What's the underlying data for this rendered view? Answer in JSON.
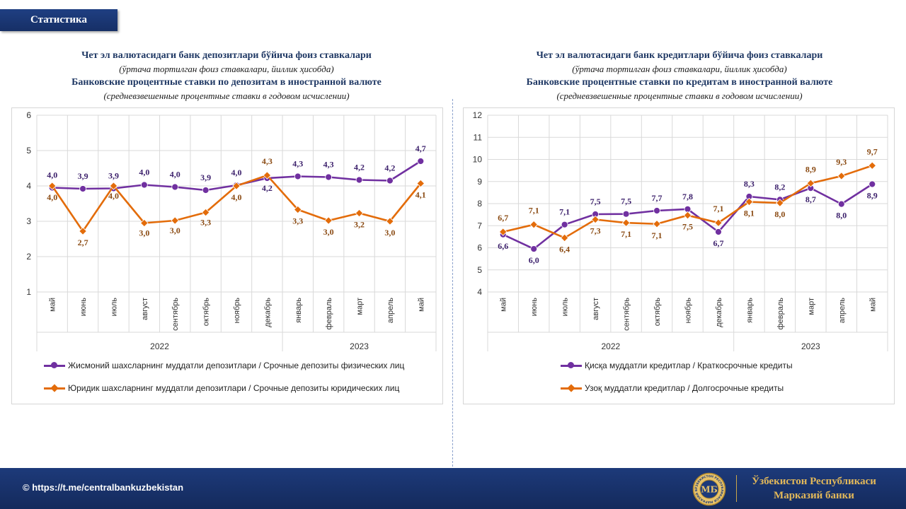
{
  "header": {
    "title": "Статистика"
  },
  "left": {
    "title_line1": "Чет эл валютасидаги банк депозитлари бўйича фоиз ставкалари",
    "title_line2": "(ўртача тортилган фоиз ставкалари, йиллик ҳисобда)",
    "title_line3": "Банковские процентные ставки по депозитам в иностранной валюте",
    "title_line4": "(средневзвешенные процентные ставки в годовом исчислении)"
  },
  "right": {
    "title_line1": "Чет эл валютасидаги банк кредитлари бўйича фоиз ставкалари",
    "title_line2": "(ўртача тортилган фоиз ставкалари, йиллик ҳисобда)",
    "title_line3": "Банковские процентные ставки по кредитам в иностранной валюте",
    "title_line4": "(средневзвешенные процентные ставки в годовом исчислении)"
  },
  "chart_data": [
    {
      "type": "line",
      "categories": [
        "май",
        "июнь",
        "июль",
        "август",
        "сентябрь",
        "октябрь",
        "ноябрь",
        "декабрь",
        "январь",
        "февраль",
        "март",
        "апрель",
        "май"
      ],
      "year_groups": [
        {
          "label": "2022",
          "count": 8
        },
        {
          "label": "2023",
          "count": 5
        }
      ],
      "ylim": [
        1,
        6
      ],
      "yticks": [
        1,
        2,
        3,
        4,
        5,
        6
      ],
      "grid": true,
      "legend": "bottom",
      "series": [
        {
          "name": "Жисмоний шахсларнинг муддатли депозитлари / Срочные депозиты физических лиц",
          "color": "#7030a0",
          "marker": "circle",
          "values": [
            3.95,
            3.92,
            3.93,
            4.03,
            3.97,
            3.88,
            4.02,
            4.22,
            4.27,
            4.25,
            4.17,
            4.15,
            4.7
          ],
          "labels": [
            "4,0",
            "3,9",
            "3,9",
            "4,0",
            "4,0",
            "3,9",
            "4,0",
            "4,2",
            "4,3",
            "4,3",
            "4,2",
            "4,2",
            "4,7"
          ]
        },
        {
          "name": "Юридик шахсларнинг муддатли депозитлари / Срочные депозиты юридических лиц",
          "color": "#e36c0a",
          "marker": "diamond",
          "values": [
            4.0,
            2.72,
            4.0,
            2.95,
            3.02,
            3.25,
            4.0,
            4.3,
            3.33,
            3.02,
            3.23,
            3.0,
            4.07
          ],
          "labels": [
            "4,0",
            "2,7",
            "4,0",
            "3,0",
            "3,0",
            "3,3",
            "4,0",
            "4,3",
            "3,3",
            "3,0",
            "3,2",
            "3,0",
            "4,1"
          ]
        }
      ]
    },
    {
      "type": "line",
      "categories": [
        "май",
        "июнь",
        "июль",
        "август",
        "сентябрь",
        "октябрь",
        "ноябрь",
        "декабрь",
        "январь",
        "февраль",
        "март",
        "апрель",
        "май"
      ],
      "year_groups": [
        {
          "label": "2022",
          "count": 8
        },
        {
          "label": "2023",
          "count": 5
        }
      ],
      "ylim": [
        4,
        12
      ],
      "yticks": [
        4,
        5,
        6,
        7,
        8,
        9,
        10,
        11,
        12
      ],
      "grid": true,
      "legend": "bottom",
      "series": [
        {
          "name": "Қисқа муддатли кредитлар / Краткосрочные кредиты",
          "color": "#7030a0",
          "marker": "circle",
          "values": [
            6.6,
            5.95,
            7.05,
            7.52,
            7.53,
            7.68,
            7.75,
            6.72,
            8.32,
            8.18,
            8.7,
            7.98,
            8.88
          ],
          "labels": [
            "6,6",
            "6,0",
            "7,1",
            "7,5",
            "7,5",
            "7,7",
            "7,8",
            "6,7",
            "8,3",
            "8,2",
            "8,7",
            "8,0",
            "8,9"
          ]
        },
        {
          "name": "Узоқ муддатли кредитлар / Долгосрочные кредиты",
          "color": "#e36c0a",
          "marker": "diamond",
          "values": [
            6.72,
            7.05,
            6.45,
            7.28,
            7.13,
            7.08,
            7.47,
            7.13,
            8.08,
            8.03,
            8.92,
            9.25,
            9.72
          ],
          "labels": [
            "6,7",
            "7,1",
            "6,4",
            "7,3",
            "7,1",
            "7,1",
            "7,5",
            "7,1",
            "8,1",
            "8,0",
            "8,9",
            "9,3",
            "9,7"
          ]
        }
      ]
    }
  ],
  "footer": {
    "link": "© https://t.me/centralbankuzbekistan",
    "bank_line1": "Ўзбекистон Республикаси",
    "bank_line2": "Марказий банки",
    "logo_text": "ЎЗБЕКИСТОН РЕСПУБЛИКАСИ МАРКАЗИЙ БАНКИ",
    "logo_mark": "МБ"
  }
}
